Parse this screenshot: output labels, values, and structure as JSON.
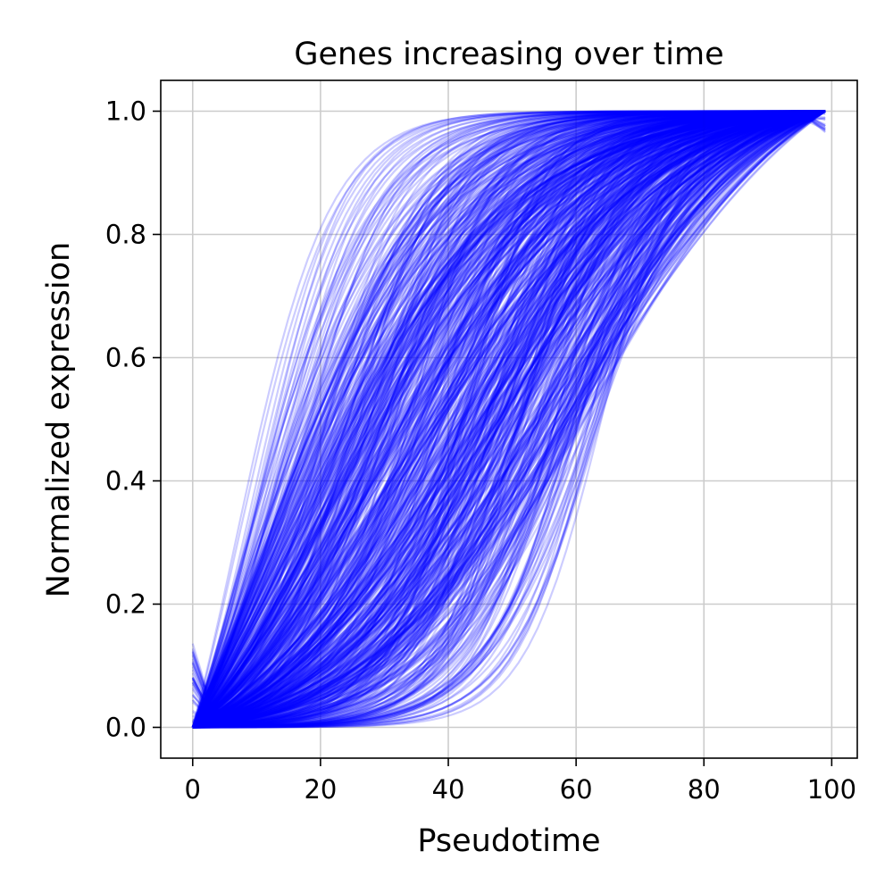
{
  "chart_data": {
    "type": "line",
    "title": "Genes increasing over time",
    "xlabel": "Pseudotime",
    "ylabel": "Normalized expression",
    "xlim": [
      -5,
      104
    ],
    "ylim": [
      -0.05,
      1.05
    ],
    "xticks": [
      0,
      20,
      40,
      60,
      80,
      100
    ],
    "xtick_labels": [
      "0",
      "20",
      "40",
      "60",
      "80",
      "100"
    ],
    "yticks": [
      0.0,
      0.2,
      0.4,
      0.6,
      0.8,
      1.0
    ],
    "ytick_labels": [
      "0.0",
      "0.2",
      "0.4",
      "0.6",
      "0.8",
      "1.0"
    ],
    "grid": true,
    "legend": "none",
    "line_color": "#0000ff",
    "line_alpha": 0.2,
    "series_x_range": [
      0,
      99
    ],
    "series_family": "sigmoid rise from 0 at pseudotime 0 to 1 at pseudotime 99",
    "representative_series": [
      {
        "x": [
          0,
          10,
          20,
          30,
          40,
          50,
          60,
          70,
          80,
          90,
          99
        ],
        "values": [
          0.0,
          0.3,
          0.55,
          0.75,
          0.85,
          0.91,
          0.95,
          0.97,
          0.99,
          1.0,
          1.0
        ]
      },
      {
        "x": [
          0,
          10,
          20,
          30,
          40,
          50,
          60,
          70,
          80,
          90,
          99
        ],
        "values": [
          0.0,
          0.2,
          0.42,
          0.6,
          0.73,
          0.82,
          0.88,
          0.93,
          0.97,
          0.99,
          1.0
        ]
      },
      {
        "x": [
          0,
          10,
          20,
          30,
          40,
          50,
          60,
          70,
          80,
          90,
          99
        ],
        "values": [
          0.0,
          0.1,
          0.28,
          0.45,
          0.6,
          0.72,
          0.81,
          0.88,
          0.94,
          0.98,
          1.0
        ]
      },
      {
        "x": [
          0,
          10,
          20,
          30,
          40,
          50,
          60,
          70,
          80,
          90,
          99
        ],
        "values": [
          0.0,
          0.03,
          0.14,
          0.3,
          0.47,
          0.61,
          0.73,
          0.83,
          0.91,
          0.97,
          1.0
        ]
      },
      {
        "x": [
          0,
          10,
          20,
          30,
          40,
          50,
          60,
          70,
          80,
          90,
          99
        ],
        "values": [
          0.0,
          0.0,
          0.04,
          0.15,
          0.3,
          0.45,
          0.58,
          0.7,
          0.82,
          0.93,
          1.0
        ]
      }
    ]
  }
}
